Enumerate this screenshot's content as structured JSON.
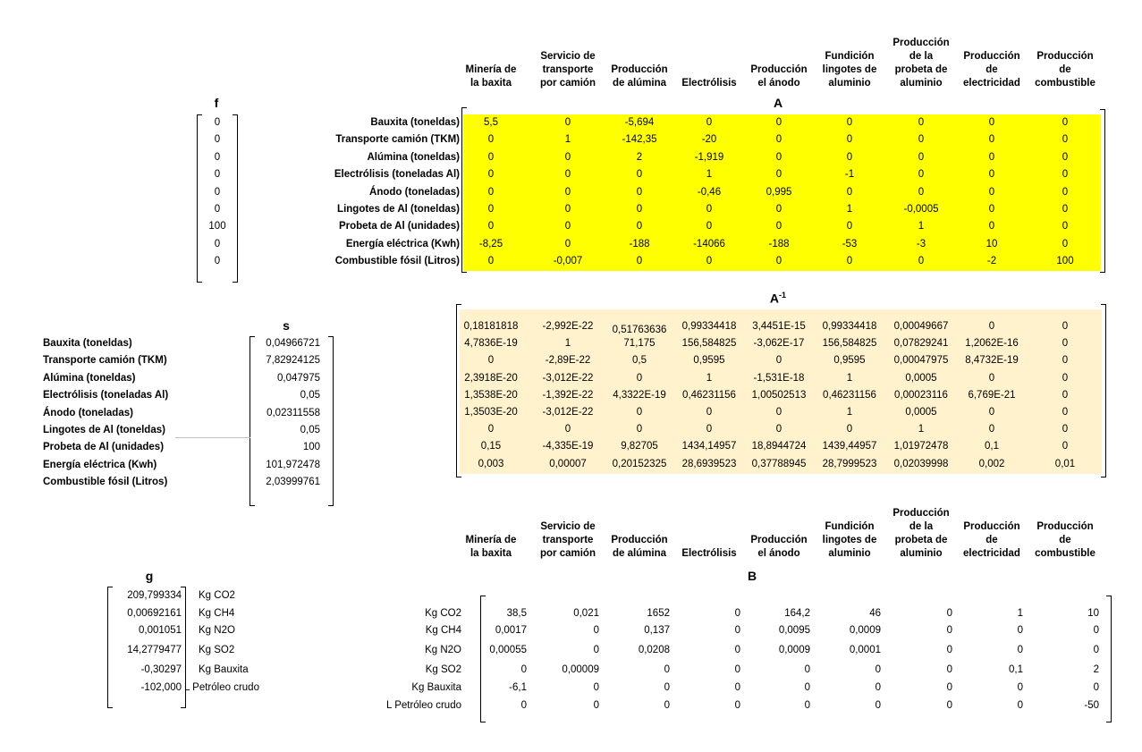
{
  "processes": [
    "Minería de la baxita",
    "Servicio de transporte por camión",
    "Producción de alúmina",
    "Electrólisis",
    "Producción el ánodo",
    "Fundición lingotes de aluminio",
    "Producción de la probeta de aluminio",
    "Producción de electricidad",
    "Producción de combustible"
  ],
  "processes_lines": [
    [
      "Minería de",
      "la baxita"
    ],
    [
      "Servicio de",
      "transporte",
      "por camión"
    ],
    [
      "Producción",
      "de alúmina"
    ],
    [
      "Electrólisis"
    ],
    [
      "Producción",
      "el ánodo"
    ],
    [
      "Fundición",
      "lingotes de",
      "aluminio"
    ],
    [
      "Producción",
      "de la",
      "probeta de",
      "aluminio"
    ],
    [
      "Producción",
      "de",
      "electricidad"
    ],
    [
      "Producción",
      "de",
      "combustible"
    ]
  ],
  "flow_labels": [
    "Bauxita (toneldas)",
    "Transporte camión (TKM)",
    "Alúmina (toneldas)",
    "Electrólisis (toneladas Al)",
    "Ánodo (toneladas)",
    "Lingotes de Al (toneldas)",
    "Probeta de Al (unidades)",
    "Energía eléctrica (Kwh)",
    "Combustible fósil (Litros)"
  ],
  "f": {
    "title": "f",
    "values": [
      "0",
      "0",
      "0",
      "0",
      "0",
      "0",
      "100",
      "0",
      "0"
    ]
  },
  "A": {
    "title": "A",
    "rows": [
      [
        "5,5",
        "0",
        "-5,694",
        "0",
        "0",
        "0",
        "0",
        "0",
        "0"
      ],
      [
        "0",
        "1",
        "-142,35",
        "-20",
        "0",
        "0",
        "0",
        "0",
        "0"
      ],
      [
        "0",
        "0",
        "2",
        "-1,919",
        "0",
        "0",
        "0",
        "0",
        "0"
      ],
      [
        "0",
        "0",
        "0",
        "1",
        "0",
        "-1",
        "0",
        "0",
        "0"
      ],
      [
        "0",
        "0",
        "0",
        "-0,46",
        "0,995",
        "0",
        "0",
        "0",
        "0"
      ],
      [
        "0",
        "0",
        "0",
        "0",
        "0",
        "1",
        "-0,0005",
        "0",
        "0"
      ],
      [
        "0",
        "0",
        "0",
        "0",
        "0",
        "0",
        "1",
        "0",
        "0"
      ],
      [
        "-8,25",
        "0",
        "-188",
        "-14066",
        "-188",
        "-53",
        "-3",
        "10",
        "0"
      ],
      [
        "0",
        "-0,007",
        "0",
        "0",
        "0",
        "0",
        "0",
        "-2",
        "100"
      ]
    ]
  },
  "Ainv": {
    "title": "A",
    "superscript": "-1",
    "rows": [
      [
        "0,18181818",
        "-2,992E-22",
        "0,51763636",
        "0,99334418",
        "3,4451E-15",
        "0,99334418",
        "0,00049667",
        "0",
        "0"
      ],
      [
        "4,7836E-19",
        "1",
        "71,175",
        "156,584825",
        "-3,062E-17",
        "156,584825",
        "0,07829241",
        "1,2062E-16",
        "0"
      ],
      [
        "0",
        "-2,89E-22",
        "0,5",
        "0,9595",
        "0",
        "0,9595",
        "0,00047975",
        "8,4732E-19",
        "0"
      ],
      [
        "2,3918E-20",
        "-3,012E-22",
        "0",
        "1",
        "-1,531E-18",
        "1",
        "0,0005",
        "0",
        "0"
      ],
      [
        "1,3538E-20",
        "-1,392E-22",
        "4,3322E-19",
        "0,46231156",
        "1,00502513",
        "0,46231156",
        "0,00023116",
        "6,769E-21",
        "0"
      ],
      [
        "1,3503E-20",
        "-3,012E-22",
        "0",
        "0",
        "0",
        "1",
        "0,0005",
        "0",
        "0"
      ],
      [
        "0",
        "0",
        "0",
        "0",
        "0",
        "0",
        "1",
        "0",
        "0"
      ],
      [
        "0,15",
        "-4,335E-19",
        "9,82705",
        "1434,14957",
        "18,8944724",
        "1439,44957",
        "1,01972478",
        "0,1",
        "0"
      ],
      [
        "0,003",
        "0,00007",
        "0,20152325",
        "28,6939523",
        "0,37788945",
        "28,7999523",
        "0,02039998",
        "0,002",
        "0,01"
      ]
    ]
  },
  "s": {
    "title": "s",
    "values": [
      "0,04966721",
      "7,82924125",
      "0,047975",
      "0,05",
      "0,02311558",
      "0,05",
      "100",
      "101,972478",
      "2,03999761"
    ]
  },
  "g": {
    "title": "g",
    "values": [
      "209,799334",
      "0,00692161",
      "0,001051",
      "14,2779477",
      "-0,30297",
      "-102,000"
    ],
    "labels": [
      "Kg CO2",
      "Kg CH4",
      "Kg N2O",
      "Kg SO2",
      "Kg Bauxita",
      "L Petróleo crudo"
    ]
  },
  "B": {
    "title": "B",
    "row_labels": [
      "Kg CO2",
      "Kg CH4",
      "Kg N2O",
      "Kg SO2",
      "Kg Bauxita",
      "L Petróleo crudo"
    ],
    "rows": [
      [
        "38,5",
        "0,021",
        "1652",
        "0",
        "164,2",
        "46",
        "0",
        "1",
        "10"
      ],
      [
        "0,0017",
        "0",
        "0,137",
        "0",
        "0,0095",
        "0,0009",
        "0",
        "0",
        "0"
      ],
      [
        "0,00055",
        "0",
        "0,0208",
        "0",
        "0,0009",
        "0,0001",
        "0",
        "0",
        "0"
      ],
      [
        "0",
        "0,00009",
        "0",
        "0",
        "0",
        "0",
        "0",
        "0,1",
        "2"
      ],
      [
        "-6,1",
        "0",
        "0",
        "0",
        "0",
        "0",
        "0",
        "0",
        "0"
      ],
      [
        "0",
        "0",
        "0",
        "0",
        "0",
        "0",
        "0",
        "0",
        "-50"
      ]
    ]
  },
  "colors": {
    "A_fill": "#ffff00",
    "Ainv_fill": "#fff2cc"
  }
}
